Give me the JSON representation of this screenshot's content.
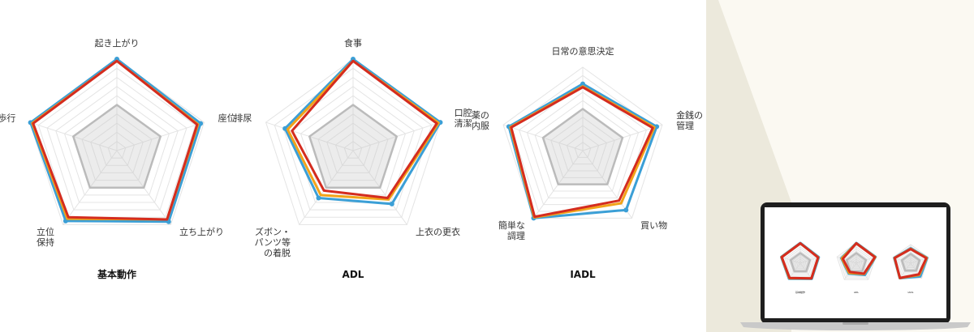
{
  "chart_data": [
    {
      "type": "radar",
      "title": "基本動作",
      "axes": [
        "起き上がり",
        "座位",
        "立ち上がり",
        "立位\n保持",
        "歩行"
      ],
      "max": 10,
      "series": [
        {
          "color": "#3b9fd6",
          "values": [
            10,
            9.6,
            9.6,
            9.5,
            9.9
          ]
        },
        {
          "color": "#f2a319",
          "values": [
            9.8,
            9.3,
            9.3,
            9.2,
            9.7
          ]
        },
        {
          "color": "#d42c1f",
          "values": [
            9.8,
            9.2,
            9.3,
            9.0,
            9.6
          ]
        },
        {
          "color": "#bbbbbb",
          "values": [
            5.0,
            5.0,
            5.0,
            5.0,
            5.0
          ]
        }
      ]
    },
    {
      "type": "radar",
      "title": "ADL",
      "axes": [
        "食事",
        "口腔\n清潔",
        "上衣の更衣",
        "ズボン・\nパンツ等\nの着脱",
        "排尿"
      ],
      "max": 10,
      "series": [
        {
          "color": "#3b9fd6",
          "values": [
            10,
            10,
            7.2,
            6.4,
            7.8
          ]
        },
        {
          "color": "#f2a319",
          "values": [
            9.8,
            9.8,
            6.6,
            6.0,
            7.5
          ]
        },
        {
          "color": "#d42c1f",
          "values": [
            9.8,
            9.6,
            6.4,
            5.4,
            7.0
          ]
        },
        {
          "color": "#bbbbbb",
          "values": [
            5.0,
            5.0,
            5.0,
            5.0,
            5.0
          ]
        }
      ]
    },
    {
      "type": "radar",
      "title": "IADL",
      "axes": [
        "日常の意思決定",
        "金銭の\n管理",
        "買い物",
        "簡単な\n調理",
        "薬の\n内服"
      ],
      "max": 10,
      "series": [
        {
          "color": "#3b9fd6",
          "values": [
            8.0,
            9.3,
            8.8,
            10,
            9.3
          ]
        },
        {
          "color": "#f2a319",
          "values": [
            7.7,
            9.0,
            7.8,
            9.9,
            9.1
          ]
        },
        {
          "color": "#d42c1f",
          "values": [
            7.6,
            8.8,
            7.4,
            9.8,
            9.0
          ]
        },
        {
          "color": "#bbbbbb",
          "values": [
            5.0,
            5.0,
            5.0,
            5.0,
            5.0
          ]
        }
      ]
    }
  ],
  "laptop_thumbnail": {
    "titles": [
      "基本動作",
      "ADL",
      "IADL"
    ]
  }
}
